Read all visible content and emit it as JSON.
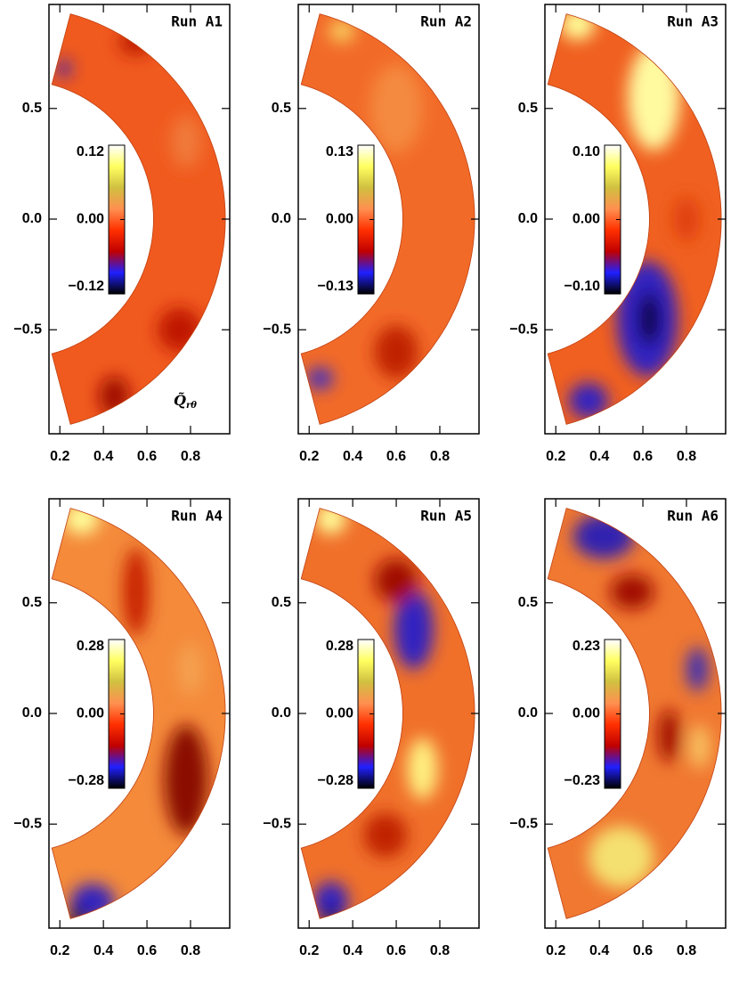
{
  "chart_data": [
    {
      "type": "contour",
      "title": "Run A1",
      "xlim": [
        0.15,
        0.98
      ],
      "ylim": [
        -0.97,
        0.97
      ],
      "xticks": [
        0.2,
        0.4,
        0.6,
        0.8
      ],
      "yticks": [
        0.5,
        {
          "value": 0,
          "label": "0.0"
        },
        {
          "value": -0.5,
          "label": "−0.5"
        }
      ],
      "clim": [
        -0.12,
        0.12
      ],
      "cticks": [
        0.12,
        {
          "value": 0,
          "label": "0.00"
        },
        {
          "value": -0.12,
          "label": "−0.12"
        }
      ],
      "colormap": [
        "#000000",
        "#2020ff",
        "#c00000",
        "#ff3000",
        "#ff9050",
        "#d0c040",
        "#ffff60",
        "#ffffff"
      ],
      "colorbar_label": "Q̃",
      "colorbar_label_sub": "rθ"
    },
    {
      "type": "contour",
      "title": "Run A2",
      "xlim": [
        0.15,
        0.98
      ],
      "ylim": [
        -0.97,
        0.97
      ],
      "xticks": [
        0.2,
        0.4,
        0.6,
        0.8
      ],
      "yticks": [
        0.5,
        {
          "value": 0,
          "label": "0.0"
        },
        {
          "value": -0.5,
          "label": "−0.5"
        }
      ],
      "clim": [
        -0.13,
        0.13
      ],
      "cticks": [
        0.13,
        {
          "value": 0,
          "label": "0.00"
        },
        {
          "value": -0.13,
          "label": "−0.13"
        }
      ],
      "colormap": [
        "#000000",
        "#2020ff",
        "#c00000",
        "#ff3000",
        "#ff9050",
        "#d0c040",
        "#ffff60",
        "#ffffff"
      ]
    },
    {
      "type": "contour",
      "title": "Run A3",
      "xlim": [
        0.15,
        0.98
      ],
      "ylim": [
        -0.97,
        0.97
      ],
      "xticks": [
        0.2,
        0.4,
        0.6,
        0.8
      ],
      "yticks": [
        0.5,
        {
          "value": 0,
          "label": "0.0"
        },
        {
          "value": -0.5,
          "label": "−0.5"
        }
      ],
      "clim": [
        -0.1,
        0.1
      ],
      "cticks": [
        {
          "value": 0.1,
          "label": "0.10"
        },
        {
          "value": 0,
          "label": "0.00"
        },
        {
          "value": -0.1,
          "label": "−0.10"
        }
      ],
      "colormap": [
        "#000000",
        "#2020ff",
        "#c00000",
        "#ff3000",
        "#ff9050",
        "#d0c040",
        "#ffff60",
        "#ffffff"
      ]
    },
    {
      "type": "contour",
      "title": "Run A4",
      "xlim": [
        0.15,
        0.98
      ],
      "ylim": [
        -0.97,
        0.97
      ],
      "xticks": [
        0.2,
        0.4,
        0.6,
        0.8
      ],
      "yticks": [
        0.5,
        {
          "value": 0,
          "label": "0.0"
        },
        {
          "value": -0.5,
          "label": "−0.5"
        }
      ],
      "clim": [
        -0.28,
        0.28
      ],
      "cticks": [
        0.28,
        {
          "value": 0,
          "label": "0.00"
        },
        {
          "value": -0.28,
          "label": "−0.28"
        }
      ],
      "colormap": [
        "#000000",
        "#2020ff",
        "#c00000",
        "#ff3000",
        "#ff9050",
        "#d0c040",
        "#ffff60",
        "#ffffff"
      ]
    },
    {
      "type": "contour",
      "title": "Run A5",
      "xlim": [
        0.15,
        0.98
      ],
      "ylim": [
        -0.97,
        0.97
      ],
      "xticks": [
        0.2,
        0.4,
        0.6,
        0.8
      ],
      "yticks": [
        0.5,
        {
          "value": 0,
          "label": "0.0"
        },
        {
          "value": -0.5,
          "label": "−0.5"
        }
      ],
      "clim": [
        -0.28,
        0.28
      ],
      "cticks": [
        0.28,
        {
          "value": 0,
          "label": "0.00"
        },
        {
          "value": -0.28,
          "label": "−0.28"
        }
      ],
      "colormap": [
        "#000000",
        "#2020ff",
        "#c00000",
        "#ff3000",
        "#ff9050",
        "#d0c040",
        "#ffff60",
        "#ffffff"
      ]
    },
    {
      "type": "contour",
      "title": "Run A6",
      "xlim": [
        0.15,
        0.98
      ],
      "ylim": [
        -0.97,
        0.97
      ],
      "xticks": [
        0.2,
        0.4,
        0.6,
        0.8
      ],
      "yticks": [
        0.5,
        {
          "value": 0,
          "label": "0.0"
        },
        {
          "value": -0.5,
          "label": "−0.5"
        }
      ],
      "clim": [
        -0.23,
        0.23
      ],
      "cticks": [
        0.23,
        {
          "value": 0,
          "label": "0.00"
        },
        {
          "value": -0.23,
          "label": "−0.23"
        }
      ],
      "colormap": [
        "#000000",
        "#2020ff",
        "#c00000",
        "#ff3000",
        "#ff9050",
        "#d0c040",
        "#ffff60",
        "#ffffff"
      ]
    }
  ]
}
